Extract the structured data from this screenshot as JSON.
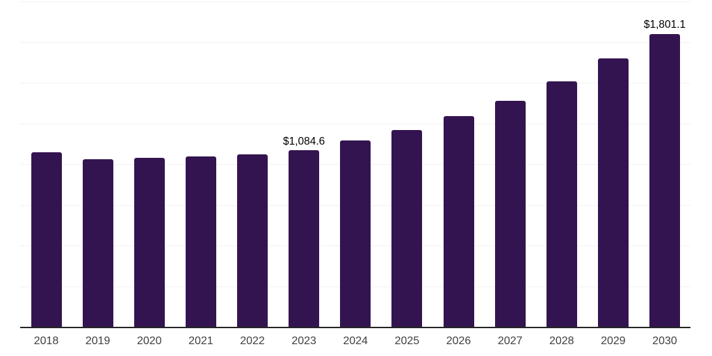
{
  "chart_data": {
    "type": "bar",
    "title": "",
    "xlabel": "",
    "ylabel": "",
    "categories": [
      "2018",
      "2019",
      "2020",
      "2021",
      "2022",
      "2023",
      "2024",
      "2025",
      "2026",
      "2027",
      "2028",
      "2029",
      "2030"
    ],
    "values": [
      1071.8,
      1030.2,
      1038.7,
      1047.3,
      1057.9,
      1084.6,
      1146.1,
      1210.0,
      1295.3,
      1389.0,
      1508.0,
      1648.0,
      1801.1
    ],
    "data_labels": [
      "",
      "",
      "",
      "",
      "",
      "$1,084.6",
      "",
      "",
      "",
      "",
      "",
      "",
      "$1,801.1"
    ],
    "ylim": [
      0,
      2000
    ],
    "grid_step": 250,
    "grid": true,
    "legend": false,
    "y_tick_labels_visible": false,
    "bar_color": "#341450",
    "background_color": "#ffffff",
    "grid_color": "#f2f2f2",
    "axis_line_color": "#262626",
    "x_tick_label_color": "#3f3f3f",
    "data_label_color": "#000000"
  }
}
